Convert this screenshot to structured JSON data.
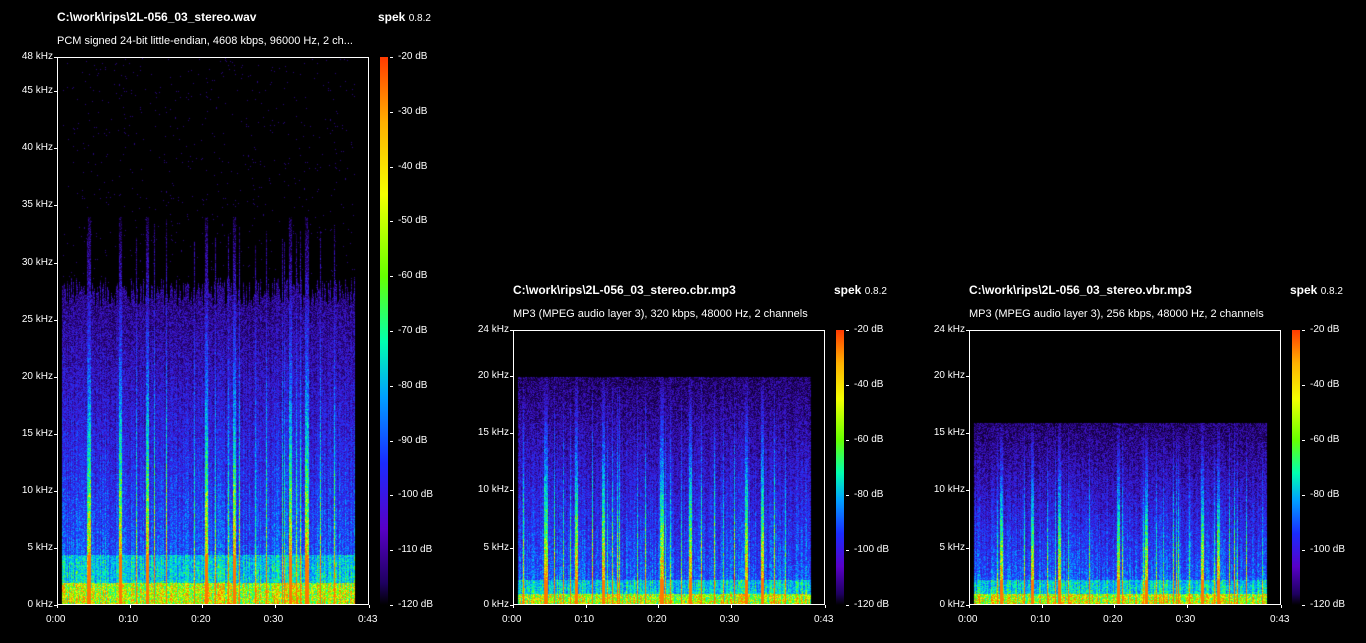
{
  "app": {
    "name": "spek",
    "version": "0.8.2"
  },
  "panels": [
    {
      "id": "wav",
      "file_path": "C:\\work\\rips\\2L-056_03_stereo.wav",
      "info": "PCM signed 24-bit little-endian, 4608 kbps, 96000 Hz, 2 ch...",
      "freq_labels": [
        "48 kHz",
        "45 kHz",
        "40 kHz",
        "35 kHz",
        "30 kHz",
        "25 kHz",
        "20 kHz",
        "15 kHz",
        "10 kHz",
        "5 kHz",
        "0 kHz"
      ],
      "freq_values_khz": [
        48,
        45,
        40,
        35,
        30,
        25,
        20,
        15,
        10,
        5,
        0
      ],
      "freq_max_khz": 48,
      "time_labels": [
        "0:00",
        "0:10",
        "0:20",
        "0:30",
        "0:43"
      ],
      "time_values_s": [
        0,
        10,
        20,
        30,
        43
      ],
      "duration_s": 43,
      "db_labels": [
        "-20 dB",
        "-30 dB",
        "-40 dB",
        "-50 dB",
        "-60 dB",
        "-70 dB",
        "-80 dB",
        "-90 dB",
        "-100 dB",
        "-110 dB",
        "-120 dB"
      ],
      "content_cutoff_khz": 30
    },
    {
      "id": "cbr",
      "file_path": "C:\\work\\rips\\2L-056_03_stereo.cbr.mp3",
      "info": "MP3 (MPEG audio layer 3), 320 kbps, 48000 Hz, 2 channels",
      "freq_labels": [
        "24 kHz",
        "20 kHz",
        "15 kHz",
        "10 kHz",
        "5 kHz",
        "0 kHz"
      ],
      "freq_values_khz": [
        24,
        20,
        15,
        10,
        5,
        0
      ],
      "freq_max_khz": 24,
      "time_labels": [
        "0:00",
        "0:10",
        "0:20",
        "0:30",
        "0:43"
      ],
      "time_values_s": [
        0,
        10,
        20,
        30,
        43
      ],
      "duration_s": 43,
      "db_labels": [
        "-20 dB",
        "-40 dB",
        "-60 dB",
        "-80 dB",
        "-100 dB",
        "-120 dB"
      ],
      "content_cutoff_khz": 20
    },
    {
      "id": "vbr",
      "file_path": "C:\\work\\rips\\2L-056_03_stereo.vbr.mp3",
      "info": "MP3 (MPEG audio layer 3), 256 kbps, 48000 Hz, 2 channels",
      "freq_labels": [
        "24 kHz",
        "20 kHz",
        "15 kHz",
        "10 kHz",
        "5 kHz",
        "0 kHz"
      ],
      "freq_values_khz": [
        24,
        20,
        15,
        10,
        5,
        0
      ],
      "freq_max_khz": 24,
      "time_labels": [
        "0:00",
        "0:10",
        "0:20",
        "0:30",
        "0:43"
      ],
      "time_values_s": [
        0,
        10,
        20,
        30,
        43
      ],
      "duration_s": 43,
      "db_labels": [
        "-20 dB",
        "-40 dB",
        "-60 dB",
        "-80 dB",
        "-100 dB",
        "-120 dB"
      ],
      "content_cutoff_khz": 16
    }
  ]
}
